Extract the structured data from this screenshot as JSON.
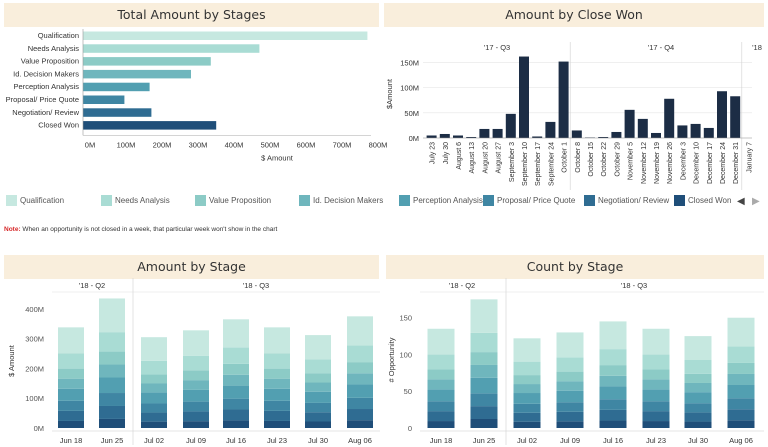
{
  "titles": {
    "stages": "Total Amount by Stages",
    "close_won": "Amount by Close Won",
    "amount_stage": "Amount by Stage",
    "count_stage": "Count by Stage"
  },
  "note": {
    "prefix": "Note:",
    "text": "When an opportunity is not closed in a week, that particular week won't show in the  chart"
  },
  "legend": [
    {
      "label": "Qualification",
      "color": "#c6e8e0"
    },
    {
      "label": "Needs Analysis",
      "color": "#a9dcd4"
    },
    {
      "label": "Value Proposition",
      "color": "#8ccbc6"
    },
    {
      "label": "Id. Decision Makers",
      "color": "#6fb6bd"
    },
    {
      "label": "Perception Analysis",
      "color": "#529fb1"
    },
    {
      "label": "Proposal/ Price Quote",
      "color": "#3f86a3"
    },
    {
      "label": "Negotiation/ Review",
      "color": "#2f6c92"
    },
    {
      "label": "Closed Won",
      "color": "#1f4e79"
    }
  ],
  "nav": {
    "prev": "◀",
    "next": "▶"
  },
  "chart_data": [
    {
      "type": "bar",
      "orientation": "horizontal",
      "title": "Total Amount by Stages",
      "categories": [
        "Qualification",
        "Needs Analysis",
        "Value Proposition",
        "Id. Decision Makers",
        "Perception Analysis",
        "Proposal/ Price Quote",
        "Negotiation/ Review",
        "Closed Won"
      ],
      "values": [
        790,
        490,
        355,
        300,
        185,
        115,
        190,
        370
      ],
      "colors": [
        "#c6e8e0",
        "#a9dcd4",
        "#8ccbc6",
        "#6fb6bd",
        "#529fb1",
        "#3f86a3",
        "#2f6c92",
        "#1f4e79"
      ],
      "xlabel": "$ Amount",
      "xlim": [
        0,
        800
      ],
      "ticks": [
        0,
        100,
        200,
        300,
        400,
        500,
        600,
        700,
        800
      ],
      "tick_labels": [
        "0M",
        "100M",
        "200M",
        "300M",
        "400M",
        "500M",
        "600M",
        "700M",
        "800M"
      ]
    },
    {
      "type": "bar",
      "title": "Amount by Close Won",
      "groups": [
        {
          "label": "'17 - Q3"
        },
        {
          "label": "'17 - Q4"
        },
        {
          "label": "'18"
        }
      ],
      "categories": [
        "July 23",
        "July 30",
        "August 6",
        "August 13",
        "August 20",
        "August 27",
        "September 3",
        "September 10",
        "September 17",
        "September 24",
        "October 1",
        "October 8",
        "October 15",
        "October 22",
        "October 29",
        "November 5",
        "November 12",
        "November 19",
        "November 26",
        "December 3",
        "December 10",
        "December 17",
        "December 24",
        "December 31",
        "January 7"
      ],
      "values": [
        5,
        8,
        5,
        2,
        18,
        18,
        48,
        162,
        3,
        32,
        152,
        15,
        1,
        2,
        12,
        56,
        38,
        10,
        78,
        25,
        28,
        20,
        93,
        83,
        0
      ],
      "ylabel": "$Amount",
      "ylim": [
        0,
        175
      ],
      "ticks": [
        0,
        50,
        100,
        150
      ],
      "tick_labels": [
        "0M",
        "50M",
        "100M",
        "150M"
      ],
      "color": "#1c2d45"
    },
    {
      "type": "bar",
      "stacked": true,
      "title": "Amount by Stage",
      "groups": [
        {
          "label": "'18 - Q2"
        },
        {
          "label": "'18 - Q3"
        }
      ],
      "categories": [
        "Jun 18",
        "Jun 25",
        "Jul 02",
        "Jul 09",
        "Jul 16",
        "Jul 23",
        "Jul 30",
        "Aug 06"
      ],
      "totals": [
        338,
        435,
        305,
        328,
        365,
        338,
        312,
        375
      ],
      "ylabel": "$ Amount",
      "ylim": [
        0,
        450
      ],
      "ticks": [
        0,
        100,
        200,
        300,
        400
      ],
      "tick_labels": [
        "0M",
        "100M",
        "200M",
        "300M",
        "400M"
      ],
      "stage_shares": [
        0.07,
        0.1,
        0.1,
        0.12,
        0.1,
        0.1,
        0.15,
        0.26
      ]
    },
    {
      "type": "bar",
      "stacked": true,
      "title": "Count by Stage",
      "groups": [
        {
          "label": "'18 - Q2"
        },
        {
          "label": "'18 - Q3"
        }
      ],
      "categories": [
        "Jun 18",
        "Jun 25",
        "Jul 02",
        "Jul 09",
        "Jul 16",
        "Jul 23",
        "Jul 30",
        "Aug 06"
      ],
      "totals": [
        135,
        175,
        122,
        130,
        145,
        135,
        125,
        150
      ],
      "ylabel": "# Opportunity",
      "ylim": [
        0,
        185
      ],
      "ticks": [
        0,
        50,
        100,
        150
      ],
      "tick_labels": [
        "0",
        "50",
        "100",
        "150"
      ],
      "stage_shares": [
        0.07,
        0.1,
        0.1,
        0.12,
        0.1,
        0.1,
        0.15,
        0.26
      ]
    }
  ]
}
